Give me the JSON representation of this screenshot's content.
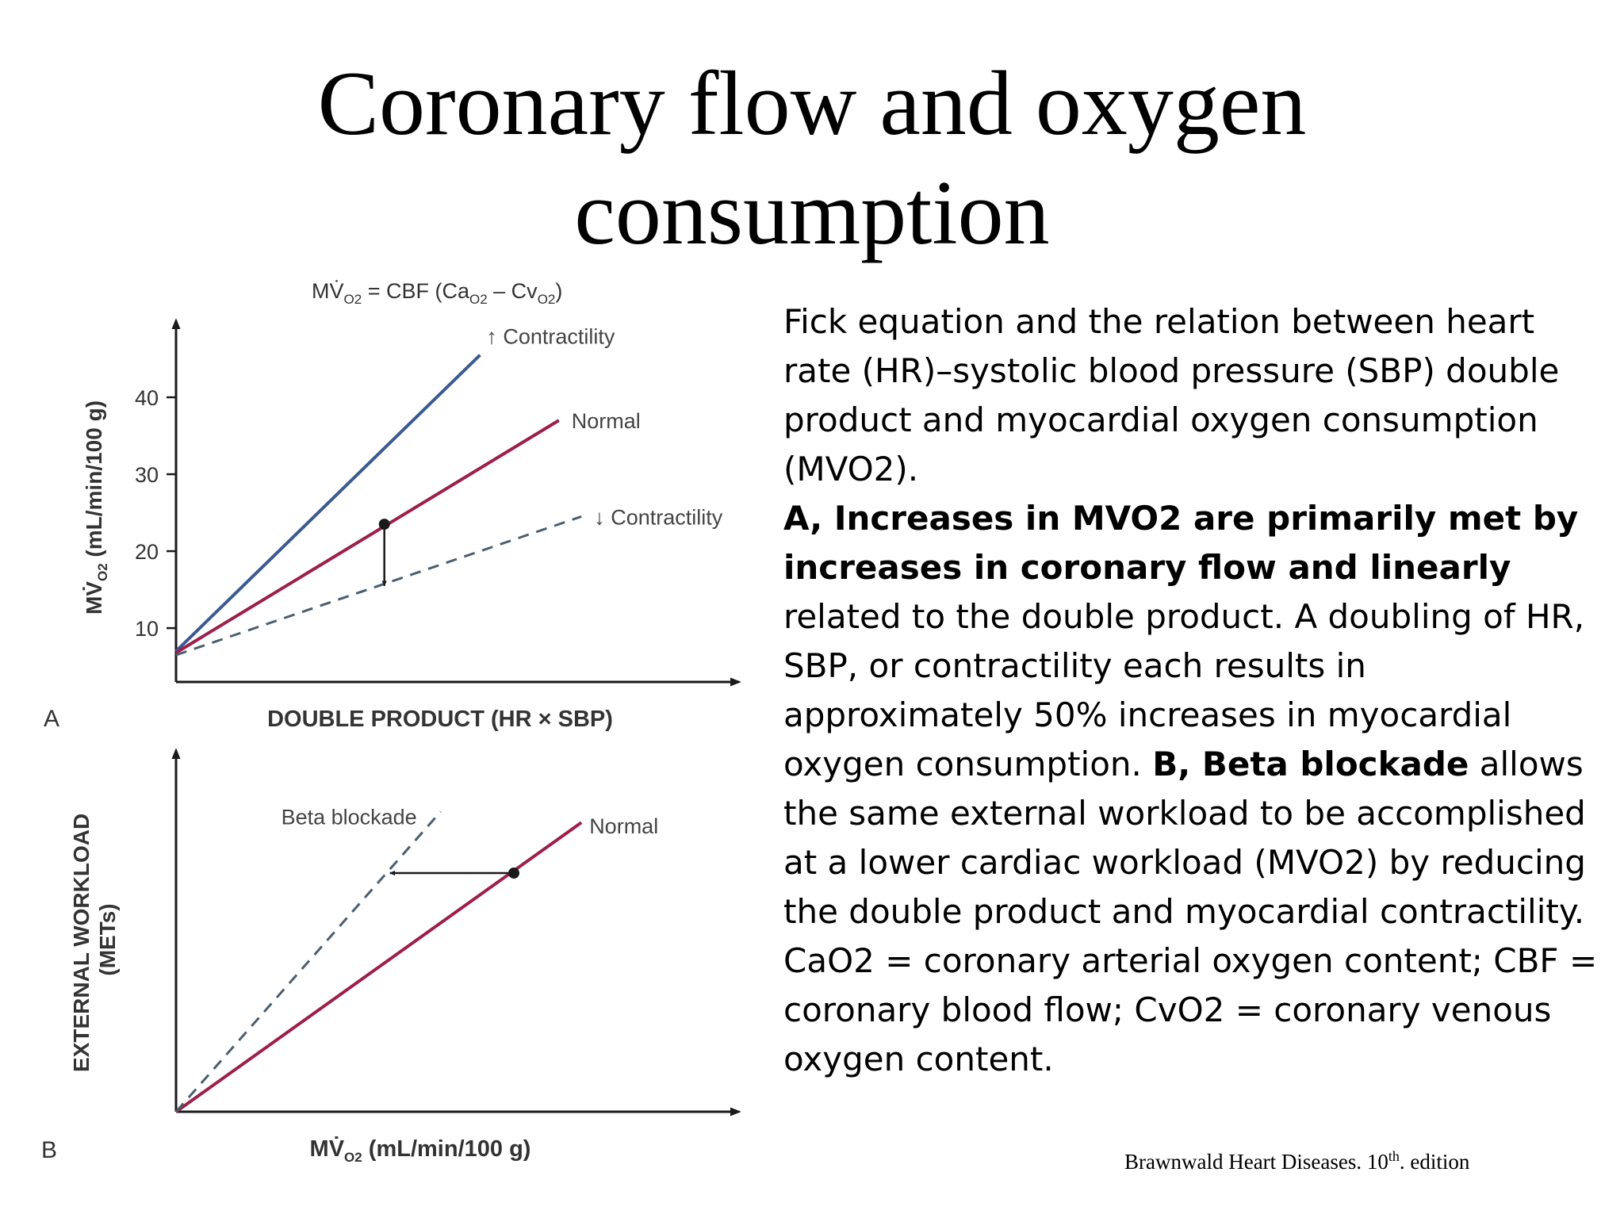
{
  "title": {
    "line1": "Coronary flow and oxygen",
    "line2": "consumption"
  },
  "body": {
    "p1": "Fick equation and the relation between heart rate (HR)–systolic blood pressure (SBP) double product and myocardial oxygen consumption (MVO2).",
    "p2_bold": "A, Increases in MVO2 are primarily met by increases in coronary flow and linearly",
    "p2_rest": " related to the double product. A doubling of HR, SBP, or contractility each results in approximately 50% increases in myocardial oxygen consumption. ",
    "p2_bold2": "B, Beta blockade",
    "p2_rest2": " allows the same external workload to be accomplished at a lower cardiac workload (MVO2) by reducing the double product and myocardial contractility.",
    "p3": "CaO2 = coronary arterial oxygen content; CBF = coronary blood flow; CvO2 = coronary venous oxygen content."
  },
  "citation": {
    "text": "Brawnwald Heart Diseases. 10",
    "sup": "th",
    "after": ". edition"
  },
  "chart_data": [
    {
      "panel": "A",
      "type": "line",
      "equation": {
        "lhs": "MV̇",
        "lhs_sub": "O2",
        "mid": " = CBF (Ca",
        "mid_sub": "O2",
        "minus": " – Cv",
        "end_sub": "O2",
        "close": ")"
      },
      "xlabel": "DOUBLE PRODUCT (HR × SBP)",
      "ylabel": {
        "main": "MV̇",
        "sub": "O2",
        "rest": " (mL/min/100 g)"
      },
      "yticks": [
        10,
        20,
        30,
        40
      ],
      "ylim": [
        3,
        50
      ],
      "xlim": [
        0,
        100
      ],
      "series": [
        {
          "name": "↑ Contractility",
          "color": "#3b5a92",
          "style": "solid",
          "x": [
            0,
            54
          ],
          "y": [
            7,
            45.5
          ]
        },
        {
          "name": "Normal",
          "color": "#9e1e4a",
          "style": "solid",
          "x": [
            0,
            68
          ],
          "y": [
            6.8,
            37
          ]
        },
        {
          "name": "↓ Contractility",
          "color": "#4a5f6e",
          "style": "dashed",
          "x": [
            0,
            72
          ],
          "y": [
            6.5,
            24.5
          ]
        }
      ],
      "annotation": {
        "type": "arrow",
        "x": 37,
        "from_y": 23.5,
        "to_y": 15.5
      }
    },
    {
      "panel": "B",
      "type": "line",
      "xlabel": {
        "main": "MV̇",
        "sub": "O2",
        "rest": " (mL/min/100 g)"
      },
      "ylabel": {
        "line1": "EXTERNAL WORKLOAD",
        "line2": "(METs)"
      },
      "xlim": [
        0,
        100
      ],
      "ylim": [
        0,
        100
      ],
      "series": [
        {
          "name": "Normal",
          "color": "#9e1e4a",
          "style": "solid",
          "x": [
            0,
            72
          ],
          "y": [
            0,
            80
          ]
        },
        {
          "name": "Beta blockade",
          "color": "#4a5f6e",
          "style": "dashed",
          "x": [
            0,
            47
          ],
          "y": [
            0,
            83
          ]
        }
      ],
      "annotation": {
        "type": "arrow",
        "y": 66,
        "from_x": 60,
        "to_x": 38
      }
    }
  ]
}
